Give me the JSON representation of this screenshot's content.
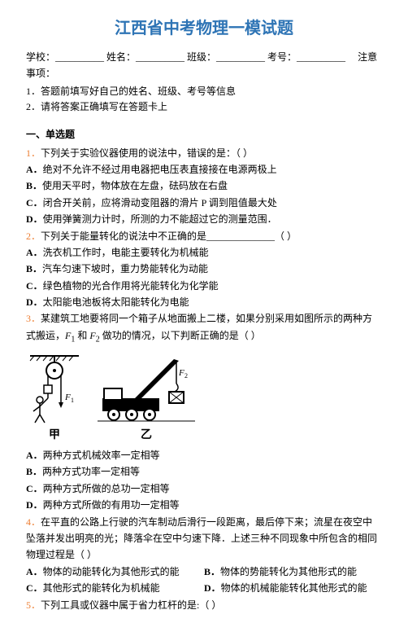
{
  "title": "江西省中考物理一模试题",
  "info": {
    "school": "学校：__________",
    "name": "姓名：__________",
    "class": "班级：__________",
    "id": "考号：__________",
    "note_label": "注意事项："
  },
  "notes": [
    "1．答题前填写好自己的姓名、班级、考号等信息",
    "2．请将答案正确填写在答题卡上"
  ],
  "section_heading": "一、单选题",
  "questions": [
    {
      "num": "1．",
      "stem": "下列关于实验仪器使用的说法中，错误的是：（   ）",
      "opts": [
        {
          "l": "A．",
          "t": "绝对不允许不经过用电器把电压表直接接在电源两极上"
        },
        {
          "l": "B．",
          "t": "使用天平时，物体放在左盘，砝码放在右盘"
        },
        {
          "l": "C．",
          "t": "闭合开关前，应将滑动变阻器的滑片 P 调到阻值最大处"
        },
        {
          "l": "D．",
          "t": "使用弹簧测力计时，所测的力不能超过它的测量范围．"
        }
      ]
    },
    {
      "num": "2．",
      "stem": "下列关于能量转化的说法中不正确的是______________（   ）",
      "opts": [
        {
          "l": "A．",
          "t": "洗衣机工作时，电能主要转化为机械能"
        },
        {
          "l": "B．",
          "t": "汽车匀速下坡时，重力势能转化为动能"
        },
        {
          "l": "C．",
          "t": "绿色植物的光合作用将光能转化为化学能"
        },
        {
          "l": "D．",
          "t": "太阳能电池板将太阳能转化为电能"
        }
      ]
    },
    {
      "num": "3．",
      "stem_parts": [
        "某建筑工地要将同一个箱子从地面搬上二楼，如果分别采用如图所示的两种方式搬运，",
        {
          "i": "F"
        },
        {
          "sub": "1"
        },
        " 和 ",
        {
          "i": "F"
        },
        {
          "sub": "2"
        },
        " 做功的情况，以下判断正确的是（   ）"
      ],
      "has_image": true,
      "img_labels": [
        "甲",
        "乙"
      ],
      "opts": [
        {
          "l": "A．",
          "t": "两种方式机械效率一定相等"
        },
        {
          "l": "B．",
          "t": "两种方式功率一定相等"
        },
        {
          "l": "C．",
          "t": "两种方式所做的总功一定相等"
        },
        {
          "l": "D．",
          "t": "两种方式所做的有用功一定相等"
        }
      ]
    },
    {
      "num": "4．",
      "stem": "在平直的公路上行驶的汽车制动后滑行一段距离，最后停下来；流星在夜空中坠落并发出明亮的光；降落伞在空中匀速下降．上述三种不同现象中所包含的相同物理过程是（   ）",
      "toprow": [
        {
          "l": "A．",
          "t": "物体的动能转化为其他形式的能"
        },
        {
          "l": "B．",
          "t": "物体的势能转化为其他形式的能"
        }
      ],
      "botrow": [
        {
          "l": "C．",
          "t": "其他形式的能转化为机械能"
        },
        {
          "l": "D．",
          "t": "物体的机械能能转化其他形式的能"
        }
      ]
    },
    {
      "num": "5．",
      "stem": "下列工具或仪器中属于省力杠杆的是:（   ）"
    }
  ],
  "colors": {
    "title": "#2e74b5",
    "qnum": "#ed7d31",
    "text": "#000000",
    "bg": "#ffffff"
  }
}
